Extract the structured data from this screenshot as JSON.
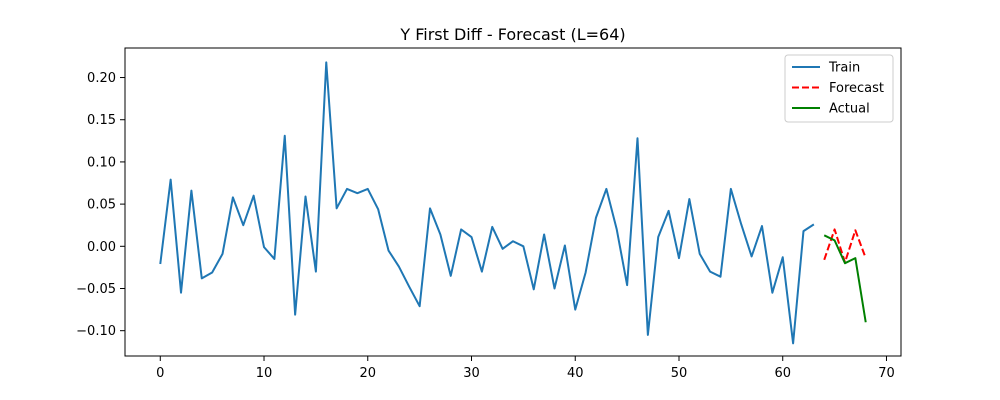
{
  "chart_data": {
    "type": "line",
    "title": "Y First Diff - Forecast (L=64)",
    "xlabel": "",
    "ylabel": "",
    "xlim": [
      -3.4,
      71.4
    ],
    "ylim": [
      -0.13,
      0.235
    ],
    "xticks": [
      0,
      10,
      20,
      30,
      40,
      50,
      60,
      70
    ],
    "yticks": [
      -0.1,
      -0.05,
      0.0,
      0.05,
      0.1,
      0.15,
      0.2
    ],
    "ytick_labels": [
      "−0.10",
      "−0.05",
      "0.00",
      "0.05",
      "0.10",
      "0.15",
      "0.20"
    ],
    "grid": false,
    "legend_position": "top-right",
    "series": [
      {
        "name": "Train",
        "color": "#1f77b4",
        "linestyle": "solid",
        "x": [
          0,
          1,
          2,
          3,
          4,
          5,
          6,
          7,
          8,
          9,
          10,
          11,
          12,
          13,
          14,
          15,
          16,
          17,
          18,
          19,
          20,
          21,
          22,
          23,
          24,
          25,
          26,
          27,
          28,
          29,
          30,
          31,
          32,
          33,
          34,
          35,
          36,
          37,
          38,
          39,
          40,
          41,
          42,
          43,
          44,
          45,
          46,
          47,
          48,
          49,
          50,
          51,
          52,
          53,
          54,
          55,
          56,
          57,
          58,
          59,
          60,
          61,
          62,
          63
        ],
        "values": [
          -0.021,
          0.079,
          -0.055,
          0.066,
          -0.038,
          -0.031,
          -0.009,
          0.058,
          0.025,
          0.06,
          -0.001,
          -0.015,
          0.131,
          -0.081,
          0.059,
          -0.03,
          0.218,
          0.045,
          0.068,
          0.063,
          0.068,
          0.044,
          -0.005,
          -0.024,
          -0.048,
          -0.071,
          0.045,
          0.014,
          -0.035,
          0.02,
          0.011,
          -0.03,
          0.023,
          -0.003,
          0.006,
          0.0,
          -0.051,
          0.014,
          -0.05,
          0.001,
          -0.075,
          -0.031,
          0.034,
          0.068,
          0.02,
          -0.046,
          0.128,
          -0.105,
          0.011,
          0.042,
          -0.014,
          0.056,
          -0.009,
          -0.03,
          -0.036,
          0.068,
          0.026,
          -0.012,
          0.024,
          -0.055,
          -0.013,
          -0.115,
          0.018,
          0.026
        ]
      },
      {
        "name": "Forecast",
        "color": "#ff0000",
        "linestyle": "dashed",
        "x": [
          64,
          65,
          66,
          67,
          68
        ],
        "values": [
          -0.016,
          0.02,
          -0.019,
          0.019,
          -0.014
        ]
      },
      {
        "name": "Actual",
        "color": "#008000",
        "linestyle": "solid",
        "x": [
          64,
          65,
          66,
          67,
          68
        ],
        "values": [
          0.013,
          0.007,
          -0.02,
          -0.014,
          -0.09
        ]
      }
    ]
  }
}
